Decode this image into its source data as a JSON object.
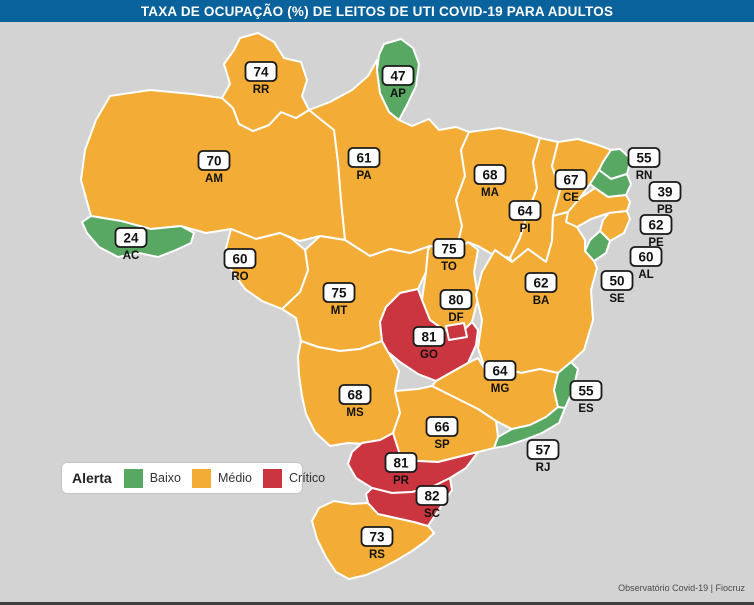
{
  "title": "TAXA DE OCUPAÇÃO (%) DE LEITOS DE UTI COVID-19 PARA ADULTOS",
  "footer": "Observatório Covid-19 | Fiocruz",
  "legend": {
    "label": "Alerta",
    "items": [
      {
        "label": "Baixo",
        "level": "baixo",
        "color": "#58A763"
      },
      {
        "label": "Médio",
        "level": "medio",
        "color": "#F3AC35"
      },
      {
        "label": "Crítico",
        "level": "critico",
        "color": "#CB3540"
      }
    ]
  },
  "colors": {
    "title_bar": "#09629C",
    "background": "#D3D3D3",
    "state_border": "#FFFFFF",
    "label_box_bg": "#FFFFFF",
    "label_box_border": "#1A1A1A",
    "bottom_line": "#3F3F3F"
  },
  "chart_data": {
    "type": "choropleth-map",
    "title": "TAXA DE OCUPAÇÃO (%) DE LEITOS DE UTI COVID-19 PARA ADULTOS",
    "unit": "%",
    "legend_levels": [
      "Baixo",
      "Médio",
      "Crítico"
    ],
    "states": [
      {
        "code": "RR",
        "value": 74,
        "level": "medio"
      },
      {
        "code": "AP",
        "value": 47,
        "level": "baixo"
      },
      {
        "code": "AM",
        "value": 70,
        "level": "medio"
      },
      {
        "code": "PA",
        "value": 61,
        "level": "medio"
      },
      {
        "code": "AC",
        "value": 24,
        "level": "baixo"
      },
      {
        "code": "RO",
        "value": 60,
        "level": "medio"
      },
      {
        "code": "MT",
        "value": 75,
        "level": "medio"
      },
      {
        "code": "TO",
        "value": 75,
        "level": "medio"
      },
      {
        "code": "MA",
        "value": 68,
        "level": "medio"
      },
      {
        "code": "PI",
        "value": 64,
        "level": "medio"
      },
      {
        "code": "CE",
        "value": 67,
        "level": "medio"
      },
      {
        "code": "RN",
        "value": 55,
        "level": "baixo"
      },
      {
        "code": "PB",
        "value": 39,
        "level": "baixo"
      },
      {
        "code": "PE",
        "value": 62,
        "level": "medio"
      },
      {
        "code": "AL",
        "value": 60,
        "level": "medio"
      },
      {
        "code": "SE",
        "value": 50,
        "level": "baixo"
      },
      {
        "code": "BA",
        "value": 62,
        "level": "medio"
      },
      {
        "code": "DF",
        "value": 80,
        "level": "critico"
      },
      {
        "code": "GO",
        "value": 81,
        "level": "critico"
      },
      {
        "code": "MG",
        "value": 64,
        "level": "medio"
      },
      {
        "code": "ES",
        "value": 55,
        "level": "baixo"
      },
      {
        "code": "RJ",
        "value": 57,
        "level": "baixo"
      },
      {
        "code": "SP",
        "value": 66,
        "level": "medio"
      },
      {
        "code": "MS",
        "value": 68,
        "level": "medio"
      },
      {
        "code": "PR",
        "value": 81,
        "level": "critico"
      },
      {
        "code": "SC",
        "value": 82,
        "level": "critico"
      },
      {
        "code": "RS",
        "value": 73,
        "level": "medio"
      }
    ]
  }
}
